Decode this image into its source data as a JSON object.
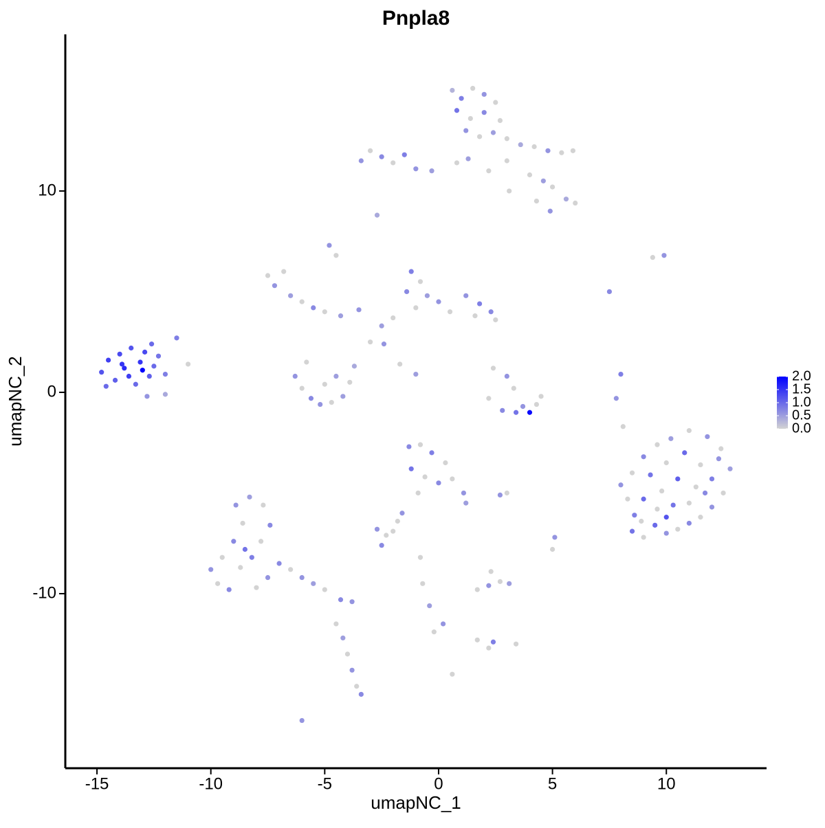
{
  "chart_data": {
    "type": "scatter",
    "title": "Pnpla8",
    "xlabel": "umapNC_1",
    "ylabel": "umapNC_2",
    "xlim": [
      -16.39,
      14.4
    ],
    "ylim": [
      -18.67,
      17.78
    ],
    "xticks": [
      -15,
      -10,
      -5,
      0,
      5,
      10
    ],
    "yticks": [
      -10,
      0,
      10
    ],
    "colorbar": {
      "lim": [
        0,
        2
      ],
      "colors": [
        "#d3d3d3",
        "#0000ff"
      ],
      "ticks": [
        {
          "value": 0,
          "label": "0.0"
        },
        {
          "value": 0.5,
          "label": "0.5"
        },
        {
          "value": 1,
          "label": "1.0"
        },
        {
          "value": 1.5,
          "label": "1.5"
        },
        {
          "value": 2,
          "label": "2.0"
        }
      ]
    },
    "x": [
      -14.8,
      -14.5,
      -14.2,
      -14.0,
      -13.8,
      -13.5,
      -13.3,
      -13.1,
      -12.9,
      -12.7,
      -12.5,
      -12.3,
      -12.0,
      -13.6,
      -14.6,
      -13.0,
      -12.8,
      -12.0,
      -11.5,
      -11.0,
      -12.6,
      -13.9,
      0.6,
      1.0,
      1.5,
      2.0,
      2.5,
      0.8,
      1.4,
      2.0,
      2.7,
      1.2,
      1.8,
      2.4,
      3.0,
      3.6,
      4.2,
      4.8,
      5.4,
      5.9,
      0.8,
      1.3,
      2.2,
      3.0,
      4.0,
      4.6,
      5.0,
      5.6,
      6.0,
      4.9,
      4.3,
      3.1,
      -3.4,
      -3.0,
      -2.5,
      -2.0,
      -1.5,
      -1.0,
      -0.3,
      -2.7,
      -7.5,
      -7.2,
      -6.8,
      -6.5,
      -6.0,
      -5.5,
      -5.0,
      -4.3,
      -3.5,
      -4.8,
      -4.5,
      -1.2,
      -0.8,
      -1.4,
      -0.5,
      -1.0,
      0.0,
      0.5,
      1.2,
      1.8,
      2.3,
      2.5,
      1.6,
      -2.0,
      -2.5,
      -3.0,
      -2.4,
      -1.7,
      -1.0,
      -6.3,
      -6.0,
      -5.6,
      -5.2,
      -4.7,
      -4.2,
      -3.9,
      -3.7,
      -5.0,
      -4.5,
      -5.8,
      2.4,
      3.0,
      3.3,
      2.2,
      2.8,
      3.4,
      4.0,
      4.3,
      4.5,
      3.7,
      8.0,
      7.8,
      8.1,
      7.5,
      9.4,
      9.9,
      8.0,
      8.3,
      8.6,
      8.5,
      9.0,
      9.5,
      10.0,
      10.5,
      11.0,
      11.5,
      12.0,
      12.5,
      12.8,
      12.4,
      11.8,
      11.0,
      10.2,
      9.6,
      9.0,
      8.5,
      9.3,
      10.0,
      10.8,
      11.5,
      12.0,
      11.3,
      10.5,
      9.8,
      9.0,
      9.6,
      10.3,
      11.0,
      11.7,
      10.0,
      8.9,
      12.3,
      -10.0,
      -9.7,
      -9.2,
      -9.5,
      -9.0,
      -8.6,
      -8.9,
      -8.3,
      -7.7,
      -7.4,
      -7.8,
      -8.2,
      -8.7,
      -7.5,
      -8.0,
      -7.0,
      -6.5,
      -6.0,
      -5.5,
      -5.0,
      -4.3,
      -3.8,
      -4.5,
      -4.2,
      -4.0,
      -3.8,
      -3.6,
      -3.4,
      -6.0,
      -8.5,
      -1.3,
      -0.8,
      -0.3,
      0.3,
      -1.2,
      -0.6,
      0.0,
      0.6,
      1.1,
      1.2,
      -0.9,
      -1.6,
      -1.8,
      -2.7,
      -2.3,
      -2.5,
      -2.0,
      2.7,
      2.2,
      1.7,
      3.1,
      2.3,
      2.4,
      2.2,
      1.7,
      0.2,
      -0.2,
      -0.4,
      -0.7,
      0.6,
      -0.8,
      3.4,
      5.1,
      5.0,
      3.0,
      2.7
    ],
    "y": [
      1.0,
      1.6,
      0.6,
      1.9,
      1.2,
      2.2,
      0.4,
      1.5,
      2.0,
      0.8,
      1.3,
      1.8,
      0.9,
      0.8,
      0.3,
      1.1,
      -0.2,
      -0.1,
      2.7,
      1.4,
      2.4,
      1.4,
      15.0,
      14.6,
      15.1,
      14.8,
      14.4,
      14.0,
      13.6,
      13.9,
      13.5,
      13.0,
      12.7,
      12.9,
      12.6,
      12.3,
      12.2,
      12.0,
      11.9,
      12.0,
      11.4,
      11.6,
      11.0,
      11.5,
      10.8,
      10.5,
      10.2,
      9.6,
      9.4,
      9.0,
      9.5,
      10.0,
      11.5,
      12.0,
      11.7,
      11.4,
      11.8,
      11.1,
      11.0,
      8.8,
      5.8,
      5.3,
      6.0,
      4.8,
      4.5,
      4.2,
      4.0,
      3.8,
      4.1,
      7.3,
      6.8,
      6.0,
      5.5,
      5.0,
      4.8,
      4.2,
      4.5,
      4.0,
      4.8,
      4.4,
      4.0,
      3.6,
      3.8,
      3.7,
      3.3,
      2.5,
      2.4,
      1.4,
      0.9,
      0.8,
      0.2,
      -0.3,
      -0.6,
      -0.5,
      -0.2,
      0.5,
      1.3,
      0.4,
      0.8,
      1.5,
      1.2,
      0.8,
      0.2,
      -0.3,
      -0.9,
      -1.0,
      -1.0,
      -0.6,
      -0.2,
      -0.7,
      0.9,
      -0.3,
      -1.7,
      5.0,
      6.7,
      6.8,
      -4.6,
      -5.3,
      -6.1,
      -6.9,
      -7.2,
      -6.6,
      -7.0,
      -6.8,
      -6.5,
      -6.2,
      -5.7,
      -5.0,
      -3.8,
      -2.8,
      -2.2,
      -1.9,
      -2.3,
      -2.6,
      -3.2,
      -4.0,
      -4.1,
      -3.5,
      -3.0,
      -3.6,
      -4.3,
      -4.7,
      -4.3,
      -4.9,
      -5.3,
      -5.8,
      -5.6,
      -5.5,
      -5.0,
      -6.2,
      -6.4,
      -3.3,
      -8.8,
      -9.5,
      -9.8,
      -8.2,
      -7.4,
      -6.5,
      -5.6,
      -5.2,
      -5.6,
      -6.6,
      -7.4,
      -8.2,
      -8.7,
      -9.2,
      -9.7,
      -8.5,
      -8.8,
      -9.2,
      -9.5,
      -9.8,
      -10.3,
      -10.4,
      -11.5,
      -12.2,
      -13.0,
      -13.8,
      -14.6,
      -15.0,
      -16.3,
      -7.8,
      -2.7,
      -2.6,
      -3.0,
      -3.5,
      -3.8,
      -4.2,
      -4.5,
      -4.3,
      -5.0,
      -5.5,
      -5.0,
      -6.0,
      -6.4,
      -6.8,
      -7.1,
      -7.6,
      -6.9,
      -9.4,
      -9.6,
      -9.8,
      -9.5,
      -8.9,
      -12.4,
      -12.7,
      -12.3,
      -11.5,
      -11.9,
      -10.6,
      -9.5,
      -14.0,
      -8.2,
      -12.5,
      -7.2,
      -7.8,
      -5.0,
      -5.1
    ],
    "values": [
      1.2,
      1.4,
      1.1,
      1.3,
      1.6,
      1.2,
      1.0,
      1.5,
      1.3,
      1.1,
      1.0,
      0.9,
      0.8,
      1.4,
      1.0,
      2.0,
      0.6,
      0.4,
      0.8,
      0.0,
      1.0,
      1.5,
      0.3,
      0.8,
      0.0,
      0.6,
      0.0,
      0.9,
      0.0,
      0.7,
      0.0,
      0.6,
      0.0,
      0.5,
      0.0,
      0.4,
      0.0,
      0.6,
      0.0,
      0.0,
      0.0,
      0.5,
      0.0,
      0.0,
      0.0,
      0.5,
      0.0,
      0.4,
      0.0,
      0.6,
      0.0,
      0.0,
      0.6,
      0.0,
      0.7,
      0.0,
      0.8,
      0.6,
      0.5,
      0.4,
      0.0,
      0.6,
      0.0,
      0.5,
      0.0,
      0.7,
      0.0,
      0.5,
      0.6,
      0.6,
      0.0,
      0.8,
      0.0,
      0.7,
      0.5,
      0.0,
      0.6,
      0.0,
      0.6,
      0.8,
      0.7,
      0.0,
      0.0,
      0.0,
      0.5,
      0.0,
      0.6,
      0.0,
      0.5,
      0.6,
      0.0,
      0.7,
      0.6,
      0.0,
      0.5,
      0.0,
      0.4,
      0.0,
      0.5,
      0.0,
      0.0,
      0.6,
      0.0,
      0.0,
      0.7,
      0.9,
      1.9,
      0.0,
      0.0,
      0.6,
      0.8,
      0.6,
      0.0,
      0.7,
      0.0,
      0.6,
      0.6,
      0.0,
      0.8,
      0.9,
      0.0,
      1.0,
      0.6,
      0.0,
      0.7,
      0.0,
      0.6,
      0.0,
      0.5,
      0.0,
      0.6,
      0.0,
      0.5,
      0.0,
      0.7,
      0.0,
      0.9,
      0.0,
      1.0,
      0.0,
      0.8,
      0.0,
      1.1,
      0.0,
      1.0,
      0.0,
      0.9,
      0.0,
      0.7,
      1.2,
      0.0,
      0.6,
      0.6,
      0.0,
      0.7,
      0.0,
      0.7,
      0.0,
      0.6,
      0.5,
      0.0,
      0.7,
      0.0,
      0.8,
      0.0,
      0.6,
      0.0,
      0.7,
      0.0,
      0.6,
      0.5,
      0.0,
      0.7,
      0.6,
      0.0,
      0.5,
      0.0,
      0.6,
      0.0,
      0.7,
      0.6,
      0.9,
      0.7,
      0.0,
      0.8,
      0.0,
      0.9,
      0.0,
      0.7,
      0.0,
      0.6,
      0.5,
      0.0,
      0.6,
      0.0,
      0.6,
      0.0,
      0.7,
      0.0,
      0.0,
      0.6,
      0.0,
      0.5,
      0.0,
      0.8,
      0.0,
      0.0,
      0.6,
      0.0,
      0.5,
      0.0,
      0.0,
      0.0,
      0.0,
      0.6,
      0.0,
      0.0,
      0.6
    ]
  }
}
